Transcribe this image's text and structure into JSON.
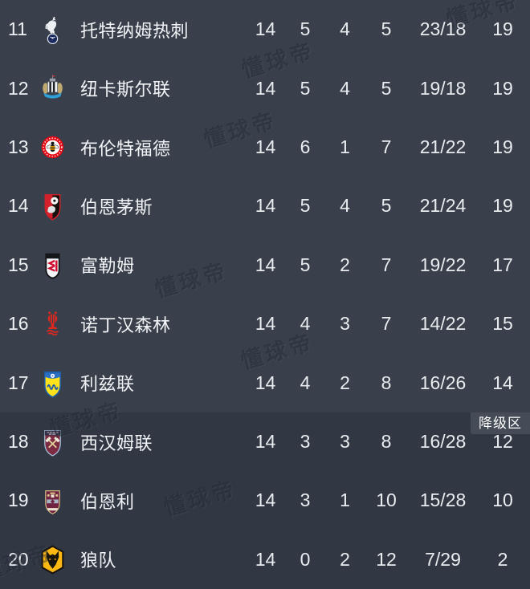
{
  "table": {
    "relegation_label": "降级区",
    "rows": [
      {
        "pos": "11",
        "name": "托特纳姆热刺",
        "crest": "tottenham",
        "played": "14",
        "won": "5",
        "drawn": "4",
        "lost": "5",
        "goals": "23/18",
        "points": "19",
        "zone": "normal"
      },
      {
        "pos": "12",
        "name": "纽卡斯尔联",
        "crest": "newcastle",
        "played": "14",
        "won": "5",
        "drawn": "4",
        "lost": "5",
        "goals": "19/18",
        "points": "19",
        "zone": "normal"
      },
      {
        "pos": "13",
        "name": "布伦特福德",
        "crest": "brentford",
        "played": "14",
        "won": "6",
        "drawn": "1",
        "lost": "7",
        "goals": "21/22",
        "points": "19",
        "zone": "normal"
      },
      {
        "pos": "14",
        "name": "伯恩茅斯",
        "crest": "bournemouth",
        "played": "14",
        "won": "5",
        "drawn": "4",
        "lost": "5",
        "goals": "21/24",
        "points": "19",
        "zone": "normal"
      },
      {
        "pos": "15",
        "name": "富勒姆",
        "crest": "fulham",
        "played": "14",
        "won": "5",
        "drawn": "2",
        "lost": "7",
        "goals": "19/22",
        "points": "17",
        "zone": "normal"
      },
      {
        "pos": "16",
        "name": "诺丁汉森林",
        "crest": "forest",
        "played": "14",
        "won": "4",
        "drawn": "3",
        "lost": "7",
        "goals": "14/22",
        "points": "15",
        "zone": "normal"
      },
      {
        "pos": "17",
        "name": "利兹联",
        "crest": "leeds",
        "played": "14",
        "won": "4",
        "drawn": "2",
        "lost": "8",
        "goals": "16/26",
        "points": "14",
        "zone": "normal"
      },
      {
        "pos": "18",
        "name": "西汉姆联",
        "crest": "westham",
        "played": "14",
        "won": "3",
        "drawn": "3",
        "lost": "8",
        "goals": "16/28",
        "points": "12",
        "zone": "relegation"
      },
      {
        "pos": "19",
        "name": "伯恩利",
        "crest": "burnley",
        "played": "14",
        "won": "3",
        "drawn": "1",
        "lost": "10",
        "goals": "15/28",
        "points": "10",
        "zone": "relegation"
      },
      {
        "pos": "20",
        "name": "狼队",
        "crest": "wolves",
        "played": "14",
        "won": "0",
        "drawn": "2",
        "lost": "12",
        "goals": "7/29",
        "points": "2",
        "zone": "relegation"
      }
    ]
  },
  "watermark": {
    "text": "懂球帝"
  },
  "colors": {
    "background": "#39404b",
    "relegation_background": "#313844",
    "tag_background": "#454c57",
    "text": "#eef1f4"
  }
}
